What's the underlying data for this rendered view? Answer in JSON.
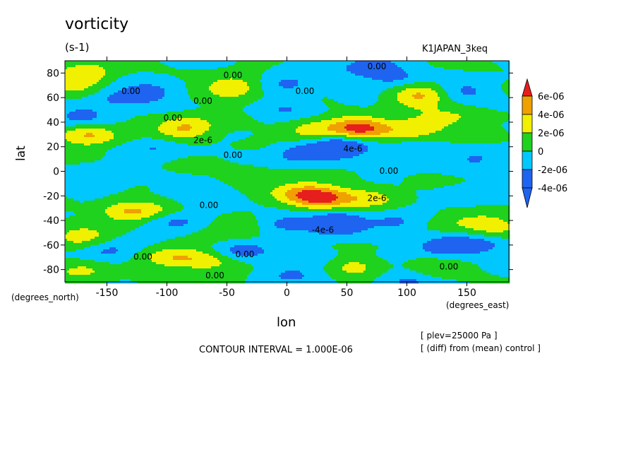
{
  "chart_data": {
    "type": "heatmap",
    "title": "vorticity",
    "units": "(s-1)",
    "run_label": "K1JAPAN_3keq",
    "xlabel": "lon",
    "ylabel": "lat",
    "xlabel_units": "(degrees_east)",
    "ylabel_units": "(degrees_north)",
    "xlim": [
      -185,
      185
    ],
    "ylim": [
      -90,
      90
    ],
    "x_ticks": [
      -150,
      -100,
      -50,
      0,
      50,
      100,
      150
    ],
    "x_tick_labels": [
      "-150",
      "-100",
      "-50",
      "0",
      "50",
      "100",
      "150"
    ],
    "y_ticks": [
      -80,
      -60,
      -40,
      -20,
      0,
      20,
      40,
      60,
      80
    ],
    "y_tick_labels": [
      "-80",
      "-60",
      "-40",
      "-20",
      "0",
      "20",
      "40",
      "60",
      "80"
    ],
    "contour_interval_text": "CONTOUR INTERVAL = 1.000E-06",
    "notes": [
      "[ plev=25000 Pa ]",
      "[ (diff) from (mean) control ]"
    ],
    "colorbar": {
      "levels": [
        {
          "label": "",
          "color": "#1e64f0"
        },
        {
          "label": "-4e-06",
          "color": "#1e64f0"
        },
        {
          "label": "-2e-06",
          "color": "#00c8ff"
        },
        {
          "label": "0",
          "color": "#1ed21e"
        },
        {
          "label": "2e-06",
          "color": "#f0f000"
        },
        {
          "label": "4e-06",
          "color": "#f0a000"
        },
        {
          "label": "6e-06",
          "color": "#e61e1e"
        }
      ],
      "tick_labels": [
        "-4e-06",
        "-2e-06",
        "0",
        "2e-06",
        "4e-06",
        "6e-06"
      ]
    },
    "contour_labels": [
      {
        "lon": -130,
        "lat": 65,
        "text": "0.00"
      },
      {
        "lon": -70,
        "lat": 57,
        "text": "0.00"
      },
      {
        "lon": -45,
        "lat": 78,
        "text": "0.00"
      },
      {
        "lon": 75,
        "lat": 85,
        "text": "0.00"
      },
      {
        "lon": 15,
        "lat": 65,
        "text": "0.00"
      },
      {
        "lon": -95,
        "lat": 43,
        "text": "0.00"
      },
      {
        "lon": -70,
        "lat": 25,
        "text": "2e-6"
      },
      {
        "lon": -45,
        "lat": 13,
        "text": "0.00"
      },
      {
        "lon": 55,
        "lat": 18,
        "text": "4e-6"
      },
      {
        "lon": 85,
        "lat": 0,
        "text": "0.00"
      },
      {
        "lon": 75,
        "lat": -22,
        "text": "2e-6"
      },
      {
        "lon": -65,
        "lat": -28,
        "text": "0.00"
      },
      {
        "lon": 30,
        "lat": -48,
        "text": "-4e-6"
      },
      {
        "lon": -120,
        "lat": -70,
        "text": "0.00"
      },
      {
        "lon": -35,
        "lat": -68,
        "text": "0.00"
      },
      {
        "lon": 135,
        "lat": -78,
        "text": "0.00"
      },
      {
        "lon": -60,
        "lat": -85,
        "text": "0.00"
      }
    ],
    "features": [
      {
        "lon": 60,
        "lat": 35,
        "value": 6.5
      },
      {
        "lon": 20,
        "lat": 33,
        "value": 3.0
      },
      {
        "lon": 100,
        "lat": 33,
        "value": 3.0
      },
      {
        "lon": 45,
        "lat": 20,
        "value": -5.0
      },
      {
        "lon": 10,
        "lat": 15,
        "value": -3.0
      },
      {
        "lon": 100,
        "lat": 15,
        "value": -2.5
      },
      {
        "lon": 30,
        "lat": -22,
        "value": 6.0
      },
      {
        "lon": 10,
        "lat": -18,
        "value": 4.0
      },
      {
        "lon": 70,
        "lat": -22,
        "value": 2.5
      },
      {
        "lon": 40,
        "lat": -42,
        "value": -5.0
      },
      {
        "lon": -5,
        "lat": -42,
        "value": -3.0
      },
      {
        "lon": 90,
        "lat": -42,
        "value": -2.5
      },
      {
        "lon": -165,
        "lat": 30,
        "value": 4.5
      },
      {
        "lon": -85,
        "lat": 35,
        "value": 4.5
      },
      {
        "lon": -45,
        "lat": 68,
        "value": 4.0
      },
      {
        "lon": -165,
        "lat": 80,
        "value": 3.0
      },
      {
        "lon": -180,
        "lat": 70,
        "value": 2.5
      },
      {
        "lon": 110,
        "lat": 62,
        "value": 4.5
      },
      {
        "lon": -140,
        "lat": 60,
        "value": -2.5
      },
      {
        "lon": -110,
        "lat": 65,
        "value": -2.5
      },
      {
        "lon": 70,
        "lat": 85,
        "value": -3.5
      },
      {
        "lon": 90,
        "lat": 75,
        "value": -2.5
      },
      {
        "lon": 0,
        "lat": 72,
        "value": -2.5
      },
      {
        "lon": 150,
        "lat": 65,
        "value": -2.5
      },
      {
        "lon": -170,
        "lat": 45,
        "value": -3.0
      },
      {
        "lon": -110,
        "lat": 20,
        "value": -2.0
      },
      {
        "lon": 160,
        "lat": 10,
        "value": -2.0
      },
      {
        "lon": 0,
        "lat": 52,
        "value": -2.0
      },
      {
        "lon": -135,
        "lat": -33,
        "value": 3.5
      },
      {
        "lon": -110,
        "lat": -33,
        "value": 2.0
      },
      {
        "lon": -170,
        "lat": -55,
        "value": 3.0
      },
      {
        "lon": -40,
        "lat": -45,
        "value": 2.5
      },
      {
        "lon": -95,
        "lat": -70,
        "value": 3.5
      },
      {
        "lon": -65,
        "lat": -73,
        "value": 3.0
      },
      {
        "lon": 170,
        "lat": -45,
        "value": 3.0
      },
      {
        "lon": -170,
        "lat": -80,
        "value": 2.5
      },
      {
        "lon": 55,
        "lat": -78,
        "value": 2.5
      },
      {
        "lon": 120,
        "lat": -78,
        "value": 2.0
      },
      {
        "lon": -95,
        "lat": -40,
        "value": -3.0
      },
      {
        "lon": -150,
        "lat": -65,
        "value": -3.0
      },
      {
        "lon": -40,
        "lat": -65,
        "value": -3.0
      },
      {
        "lon": 130,
        "lat": -62,
        "value": -3.5
      },
      {
        "lon": 160,
        "lat": -60,
        "value": -2.5
      },
      {
        "lon": -60,
        "lat": -20,
        "value": -2.0
      },
      {
        "lon": -150,
        "lat": -5,
        "value": -2.0
      },
      {
        "lon": 20,
        "lat": -70,
        "value": -2.0
      },
      {
        "lon": 100,
        "lat": -88,
        "value": -2.5
      },
      {
        "lon": 0,
        "lat": -85,
        "value": -2.0
      },
      {
        "lon": 150,
        "lat": -20,
        "value": -1.5
      },
      {
        "lon": 120,
        "lat": 40,
        "value": 2.0
      },
      {
        "lon": 150,
        "lat": 45,
        "value": 1.5
      },
      {
        "lon": -30,
        "lat": -5,
        "value": 1.2
      },
      {
        "lon": 140,
        "lat": -40,
        "value": 1.5
      }
    ]
  }
}
